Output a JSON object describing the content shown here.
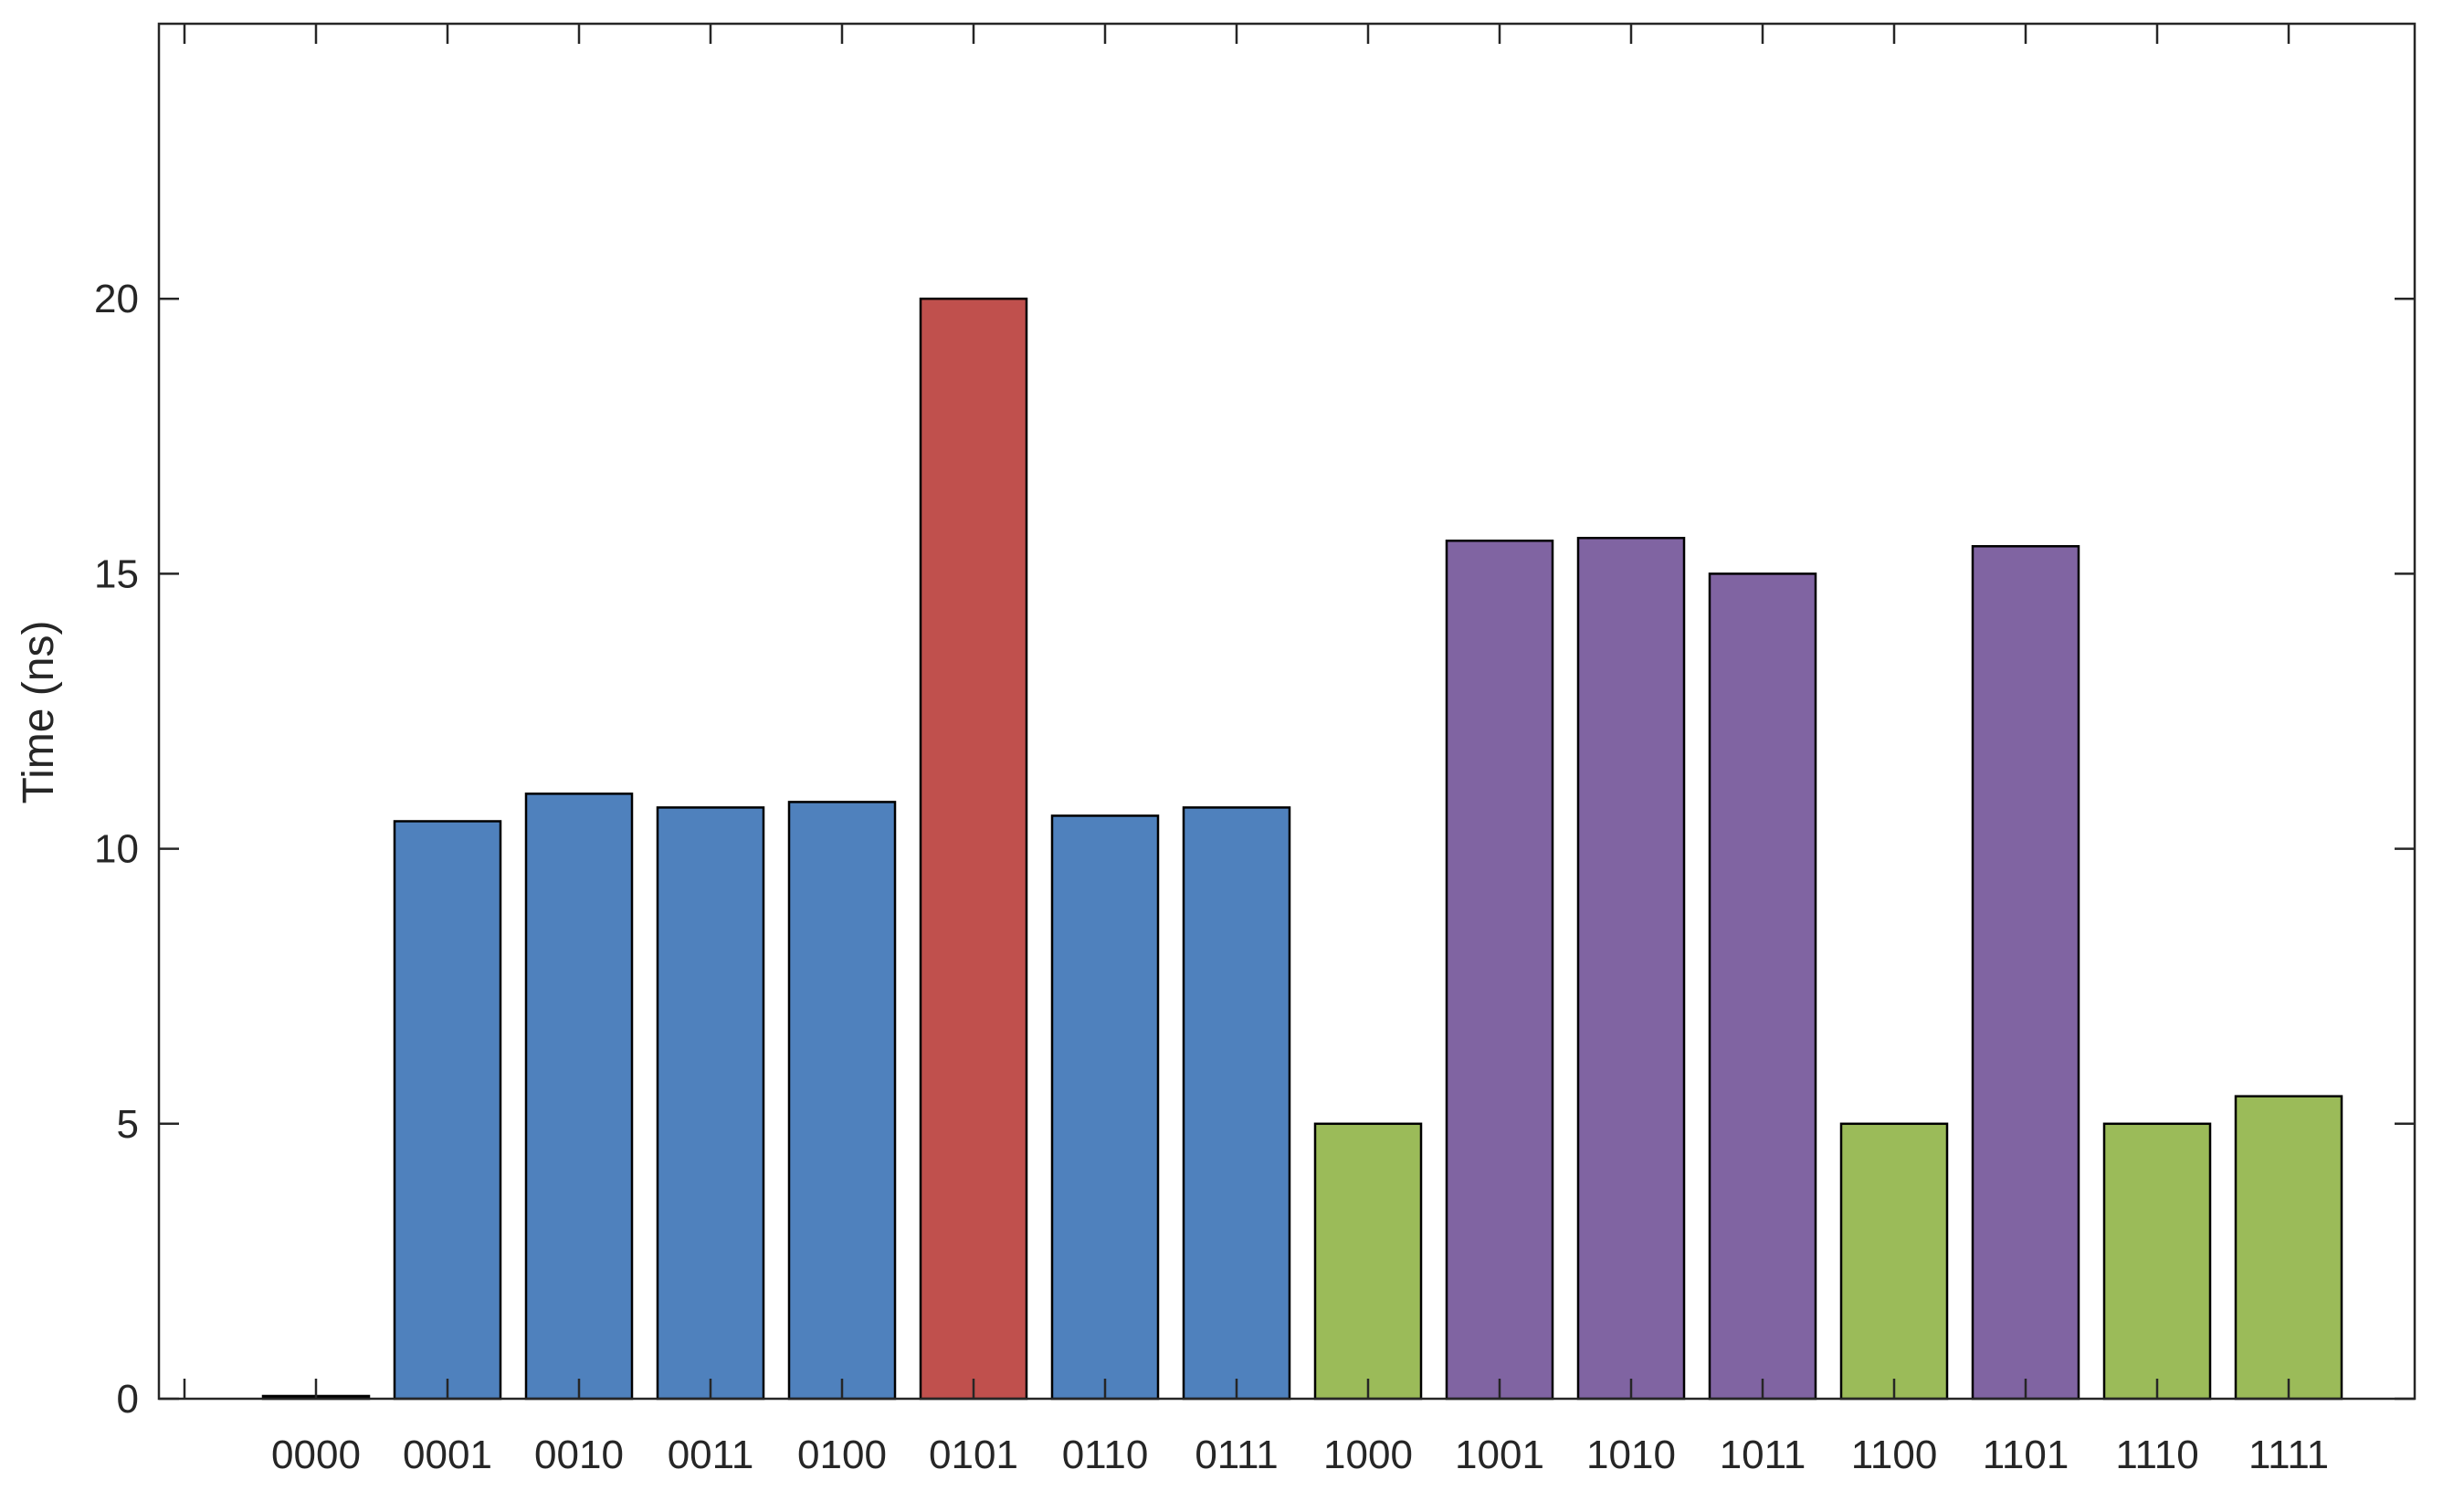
{
  "chart_data": {
    "type": "bar",
    "ylabel": "Time (ns)",
    "xlabel": "",
    "ylim": [
      0,
      25
    ],
    "yticks": [
      0,
      5,
      10,
      15,
      20
    ],
    "grid": false,
    "legend": "none",
    "categories": [
      "0000",
      "0001",
      "0010",
      "0011",
      "0100",
      "0101",
      "0110",
      "0111",
      "1000",
      "1001",
      "1010",
      "1011",
      "1100",
      "1101",
      "1110",
      "1111"
    ],
    "values": [
      0.05,
      10.5,
      11.0,
      10.75,
      10.85,
      20.0,
      10.6,
      10.75,
      5.0,
      15.6,
      15.65,
      15.0,
      5.0,
      15.5,
      5.0,
      5.5
    ],
    "bar_colors": [
      "#000000",
      "#4f81bd",
      "#4f81bd",
      "#4f81bd",
      "#4f81bd",
      "#c0504d",
      "#4f81bd",
      "#4f81bd",
      "#9bbb59",
      "#8064a2",
      "#8064a2",
      "#8064a2",
      "#9bbb59",
      "#8064a2",
      "#9bbb59",
      "#9bbb59"
    ],
    "edge_color": "#000000",
    "axis_color": "#262626"
  }
}
